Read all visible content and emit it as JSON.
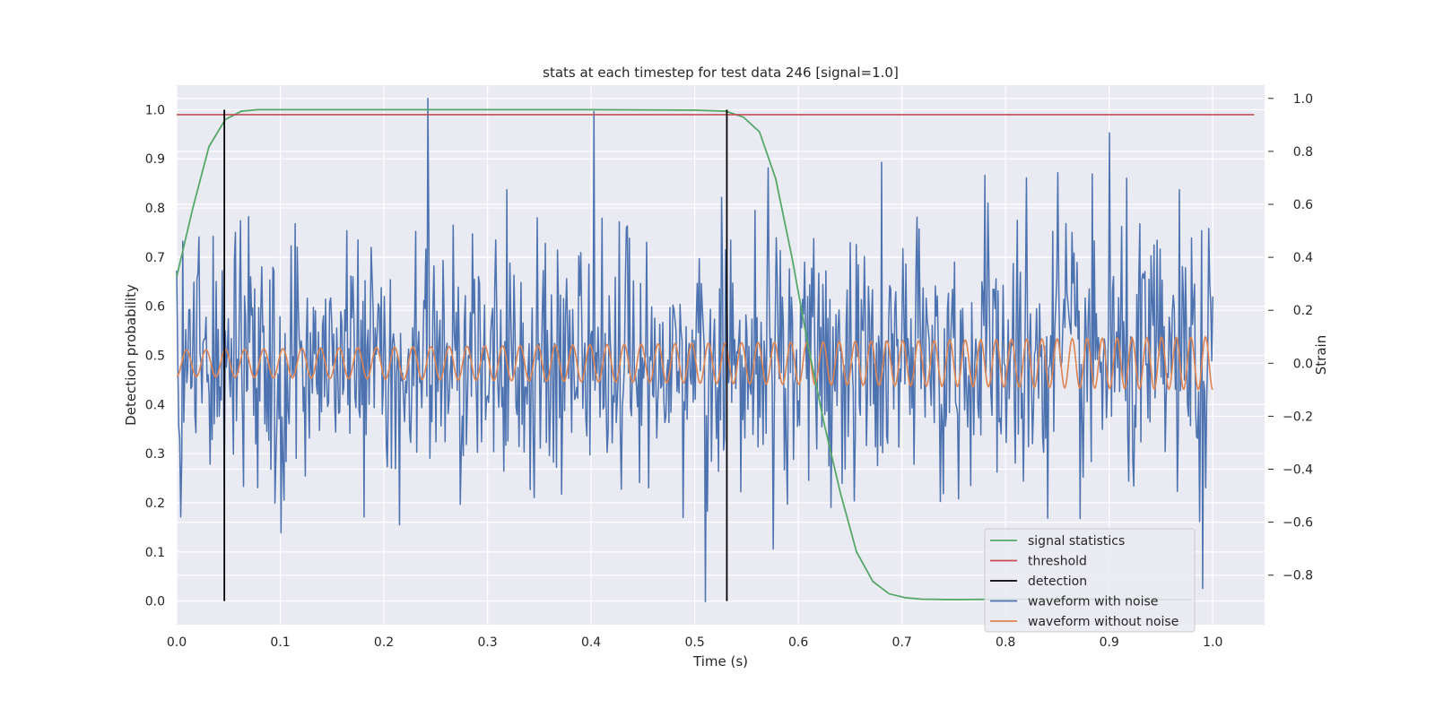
{
  "chart_data": {
    "type": "line",
    "title": "stats at each timestep for test data 246 [signal=1.0]",
    "xlabel": "Time (s)",
    "ylabel": "Detection probability",
    "y2label": "Strain",
    "xlim": [
      0.0,
      1.05
    ],
    "ylim": [
      -0.048,
      1.05
    ],
    "y2lim": [
      -0.987,
      1.05
    ],
    "xticks": [
      "0.0",
      "0.1",
      "0.2",
      "0.3",
      "0.4",
      "0.5",
      "0.6",
      "0.7",
      "0.8",
      "0.9",
      "1.0"
    ],
    "yticks": [
      "0.0",
      "0.1",
      "0.2",
      "0.3",
      "0.4",
      "0.5",
      "0.6",
      "0.7",
      "0.8",
      "0.9",
      "1.0"
    ],
    "y2ticks": [
      "−0.8",
      "−0.6",
      "−0.4",
      "−0.2",
      "0.0",
      "0.2",
      "0.4",
      "0.6",
      "0.8",
      "1.0"
    ],
    "grid": true,
    "legend_position": "lower-right",
    "colors": {
      "signal_statistics": "#55a868",
      "threshold": "#c44e52",
      "detection": "#000000",
      "waveform_with_noise": "#4c72b0",
      "waveform_without_noise": "#dd8452",
      "plot_background": "#eaeaf2",
      "grid": "#ffffff"
    },
    "legend": [
      "signal statistics",
      "threshold",
      "detection",
      "waveform with noise",
      "waveform without noise"
    ],
    "series": [
      {
        "name": "signal statistics",
        "axis": "left",
        "x": [
          0.0,
          0.0156,
          0.0312,
          0.0469,
          0.0625,
          0.0781,
          0.1,
          0.2,
          0.3,
          0.4,
          0.5,
          0.53,
          0.5469,
          0.5625,
          0.5781,
          0.5938,
          0.6094,
          0.625,
          0.6406,
          0.6562,
          0.6719,
          0.6875,
          0.7031,
          0.7188,
          0.75,
          0.8,
          0.9,
          0.98
        ],
        "y": [
          0.66,
          0.8,
          0.925,
          0.98,
          0.997,
          1.0,
          1.0,
          1.0,
          1.0,
          1.0,
          0.999,
          0.997,
          0.985,
          0.955,
          0.86,
          0.7,
          0.52,
          0.36,
          0.22,
          0.1,
          0.04,
          0.015,
          0.007,
          0.004,
          0.003,
          0.004,
          0.003,
          0.003
        ]
      },
      {
        "name": "threshold",
        "axis": "left",
        "x": [
          0.0,
          1.04
        ],
        "y": [
          0.99,
          0.99
        ]
      },
      {
        "name": "detection",
        "axis": "left",
        "x": [
          0.046,
          0.531
        ],
        "y0": 0.0,
        "y1": 1.0
      },
      {
        "name": "waveform with noise",
        "axis": "right",
        "x_start": 0.0,
        "x_end": 1.0,
        "n_points": 1024,
        "amplitude_approx": 0.25,
        "peaks": [
          [
            0.0,
            0.35
          ],
          [
            0.004,
            -0.58
          ],
          [
            0.242,
            1.0
          ],
          [
            0.403,
            0.95
          ],
          [
            0.51,
            -0.9
          ],
          [
            0.9,
            0.87
          ],
          [
            0.85,
            0.72
          ],
          [
            0.82,
            0.7
          ],
          [
            0.78,
            0.71
          ],
          [
            0.101,
            -0.64
          ],
          [
            0.215,
            -0.61
          ],
          [
            0.99,
            -0.85
          ]
        ]
      },
      {
        "name": "waveform without noise",
        "axis": "right",
        "x_start": 0.0,
        "x_end": 1.0,
        "amplitude_start": 0.05,
        "amplitude_end": 0.1,
        "cycles_approx": 62
      }
    ]
  }
}
